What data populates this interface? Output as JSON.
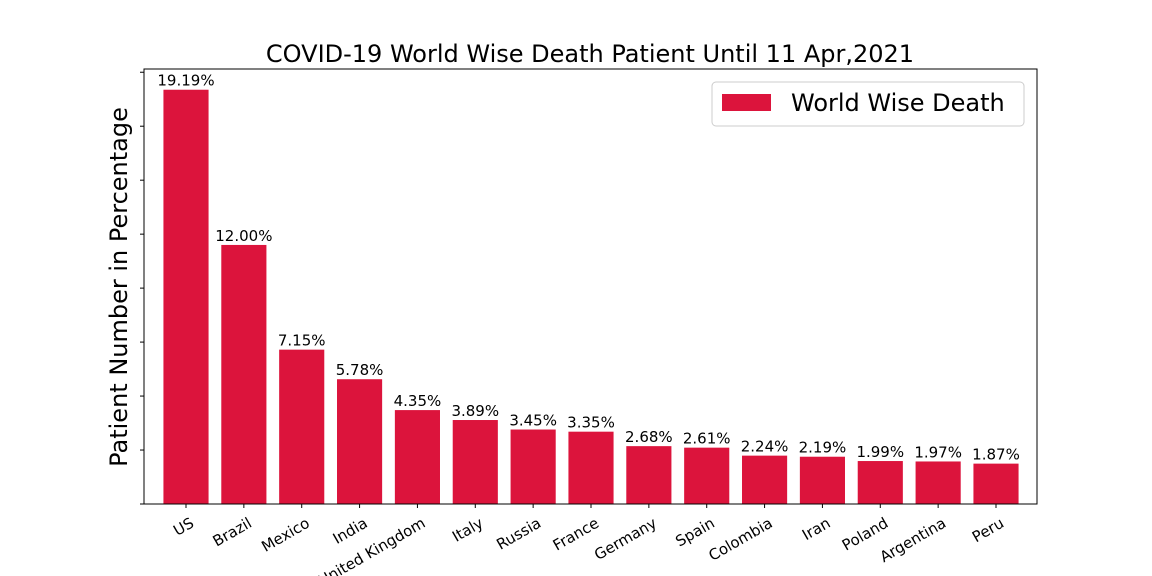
{
  "chart_data": {
    "type": "bar",
    "title": "COVID-19 World Wise Death Patient Until 11 Apr,2021",
    "xlabel": "",
    "ylabel": "Patient Number in Percentage",
    "categories": [
      "US",
      "Brazil",
      "Mexico",
      "India",
      "United Kingdom",
      "Italy",
      "Russia",
      "France",
      "Germany",
      "Spain",
      "Colombia",
      "Iran",
      "Poland",
      "Argentina",
      "Peru"
    ],
    "series": [
      {
        "name": "World Wise Death",
        "values": [
          19.19,
          12.0,
          7.15,
          5.78,
          4.35,
          3.89,
          3.45,
          3.35,
          2.68,
          2.61,
          2.24,
          2.19,
          1.99,
          1.97,
          1.87
        ]
      }
    ],
    "data_labels": [
      "19.19%",
      "12.00%",
      "7.15%",
      "5.78%",
      "4.35%",
      "3.89%",
      "3.45%",
      "3.35%",
      "2.68%",
      "2.61%",
      "2.24%",
      "2.19%",
      "1.99%",
      "1.97%",
      "1.87%"
    ],
    "ylim": [
      0,
      20.15
    ],
    "y_tick_labels_shown": false,
    "grid": false,
    "legend_position": "upper right",
    "bar_color": "#dc143c"
  }
}
